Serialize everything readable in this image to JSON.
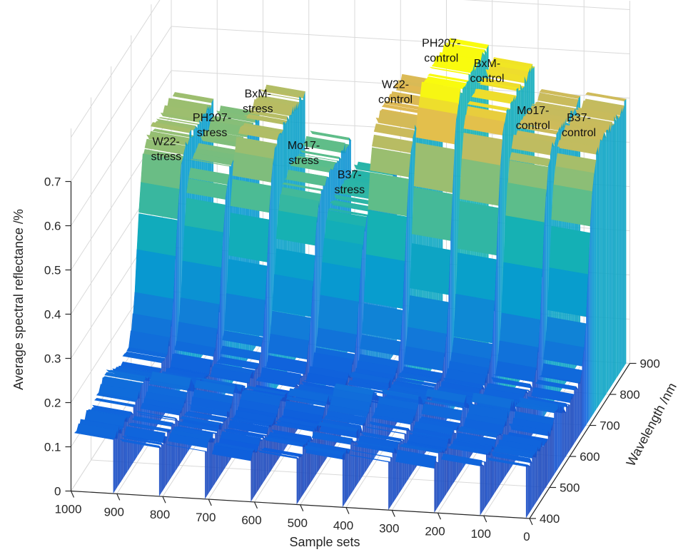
{
  "chart_data": {
    "type": "surface3d",
    "xlabel": "Sample sets",
    "ylabel": "Wavelength /nm",
    "zlabel": "Average spectral reflectance /%",
    "x_ticks": [
      "1000",
      "900",
      "800",
      "700",
      "600",
      "500",
      "400",
      "300",
      "200",
      "100",
      "0"
    ],
    "y_ticks": [
      "400",
      "500",
      "600",
      "700",
      "800",
      "900"
    ],
    "z_ticks": [
      "0",
      "0.1",
      "0.2",
      "0.3",
      "0.4",
      "0.5",
      "0.6",
      "0.7"
    ],
    "xlim": [
      0,
      1000
    ],
    "ylim": [
      400,
      900
    ],
    "zlim": [
      0,
      0.7
    ],
    "colormap": "parula",
    "grid": true,
    "groups": [
      {
        "label": "W22-stress",
        "label_lines": [
          "W22-",
          "stress"
        ],
        "sample_range": [
          900,
          1000
        ],
        "visible_peak": 0.46,
        "plateau_level": 0.55,
        "low_level": 0.13
      },
      {
        "label": "PH207-stress",
        "label_lines": [
          "PH207-",
          "stress"
        ],
        "sample_range": [
          800,
          900
        ],
        "visible_peak": 0.52,
        "plateau_level": 0.52,
        "low_level": 0.12
      },
      {
        "label": "BxM-stress",
        "label_lines": [
          "BxM-",
          "stress"
        ],
        "sample_range": [
          700,
          800
        ],
        "visible_peak": 0.58,
        "plateau_level": 0.58,
        "low_level": 0.12
      },
      {
        "label": "Mo17-stress",
        "label_lines": [
          "Mo17-",
          "stress"
        ],
        "sample_range": [
          600,
          700
        ],
        "visible_peak": 0.47,
        "plateau_level": 0.48,
        "low_level": 0.11
      },
      {
        "label": "B37-stress",
        "label_lines": [
          "B37-",
          "stress"
        ],
        "sample_range": [
          500,
          600
        ],
        "visible_peak": 0.41,
        "plateau_level": 0.42,
        "low_level": 0.11
      },
      {
        "label": "W22-control",
        "label_lines": [
          "W22-",
          "control"
        ],
        "sample_range": [
          400,
          500
        ],
        "visible_peak": 0.62,
        "plateau_level": 0.62,
        "low_level": 0.12
      },
      {
        "label": "PH207-control",
        "label_lines": [
          "PH207-",
          "control"
        ],
        "sample_range": [
          300,
          400
        ],
        "visible_peak": 0.72,
        "plateau_level": 0.71,
        "low_level": 0.12
      },
      {
        "label": "BxM-control",
        "label_lines": [
          "BxM-",
          "control"
        ],
        "sample_range": [
          200,
          300
        ],
        "visible_peak": 0.68,
        "plateau_level": 0.67,
        "low_level": 0.12
      },
      {
        "label": "Mo17-control",
        "label_lines": [
          "Mo17-",
          "control"
        ],
        "sample_range": [
          100,
          200
        ],
        "visible_peak": 0.58,
        "plateau_level": 0.6,
        "low_level": 0.12
      },
      {
        "label": "B37-control",
        "label_lines": [
          "B37-",
          "control"
        ],
        "sample_range": [
          0,
          100
        ],
        "visible_peak": 0.57,
        "plateau_level": 0.6,
        "low_level": 0.12
      }
    ]
  }
}
